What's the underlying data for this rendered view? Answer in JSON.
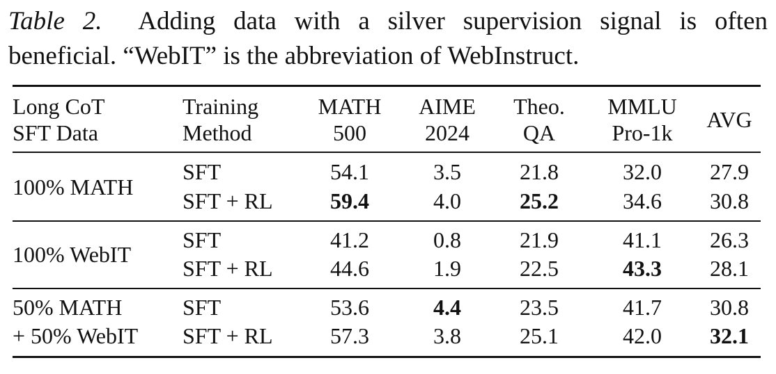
{
  "caption": {
    "label": "Table 2.",
    "text_line1": "Adding data with a silver supervision signal is often",
    "text_line2": "beneficial. “WebIT” is the abbreviation of WebInstruct."
  },
  "table": {
    "header": {
      "data": [
        "Long CoT",
        "SFT Data"
      ],
      "method": [
        "Training",
        "Method"
      ],
      "math500": [
        "MATH",
        "500"
      ],
      "aime": [
        "AIME",
        "2024"
      ],
      "theo": [
        "Theo.",
        "QA"
      ],
      "mmlu": [
        "MMLU",
        "Pro-1k"
      ],
      "avg": "AVG"
    },
    "groups": [
      {
        "data": [
          "100% MATH"
        ],
        "rows": [
          {
            "method": "SFT",
            "math500": "54.1",
            "aime": "3.5",
            "theo": "21.8",
            "mmlu": "32.0",
            "avg": "27.9"
          },
          {
            "method": "SFT + RL",
            "math500": "59.4",
            "aime": "4.0",
            "theo": "25.2",
            "mmlu": "34.6",
            "avg": "30.8"
          }
        ]
      },
      {
        "data": [
          "100% WebIT"
        ],
        "rows": [
          {
            "method": "SFT",
            "math500": "41.2",
            "aime": "0.8",
            "theo": "21.9",
            "mmlu": "41.1",
            "avg": "26.3"
          },
          {
            "method": "SFT + RL",
            "math500": "44.6",
            "aime": "1.9",
            "theo": "22.5",
            "mmlu": "43.3",
            "avg": "28.1"
          }
        ]
      },
      {
        "data": [
          "50% MATH",
          "+ 50% WebIT"
        ],
        "rows": [
          {
            "method": "SFT",
            "math500": "53.6",
            "aime": "4.4",
            "theo": "23.5",
            "mmlu": "41.7",
            "avg": "30.8"
          },
          {
            "method": "SFT + RL",
            "math500": "57.3",
            "aime": "3.8",
            "theo": "25.1",
            "mmlu": "42.0",
            "avg": "32.1"
          }
        ]
      }
    ],
    "bold_cells": [
      "0.1.math500",
      "0.1.theo",
      "1.1.mmlu",
      "2.0.aime",
      "2.1.avg"
    ]
  }
}
